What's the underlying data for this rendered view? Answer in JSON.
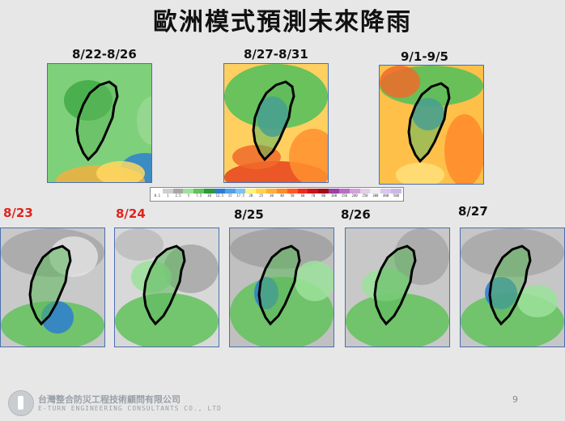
{
  "slide": {
    "title": "歐洲模式預測未來降雨",
    "page_number": "9"
  },
  "weekly_forecasts": [
    {
      "label": "8/22-8/26"
    },
    {
      "label": "8/27-8/31"
    },
    {
      "label": "9/1-9/5"
    }
  ],
  "daily_forecasts": [
    {
      "label": "8/23",
      "highlighted": true
    },
    {
      "label": "8/24",
      "highlighted": true
    },
    {
      "label": "8/25",
      "highlighted": false
    },
    {
      "label": "8/26",
      "highlighted": false
    },
    {
      "label": "8/27",
      "highlighted": false
    }
  ],
  "color_scale": {
    "ticks": [
      "0.1",
      "1",
      "2.5",
      "5",
      "7.5",
      "10",
      "12.5",
      "15",
      "17.5",
      "20",
      "25",
      "30",
      "40",
      "50",
      "60",
      "70",
      "80",
      "100",
      "150",
      "200",
      "250",
      "300",
      "400",
      "500"
    ],
    "colors": [
      "#ffffff",
      "#cfcfcf",
      "#a7a7a7",
      "#9be29a",
      "#62c25c",
      "#2f9a37",
      "#2d7dcf",
      "#4fa2e8",
      "#7ec3f5",
      "#fff37a",
      "#ffd34a",
      "#ffb03a",
      "#ff8a2a",
      "#ff5a1e",
      "#ee2a1a",
      "#c8141a",
      "#9c0f18",
      "#9a3fa6",
      "#b86ec4",
      "#d3a2dc",
      "#e6cdea",
      "#eeeeee",
      "#d8c8f0",
      "#cbb8e8"
    ]
  },
  "footer": {
    "company_name": "台灣整合防災工程技術顧問有限公司",
    "company_name_en": "E-TURN ENGINEERING CONSULTANTS CO., LTD"
  }
}
